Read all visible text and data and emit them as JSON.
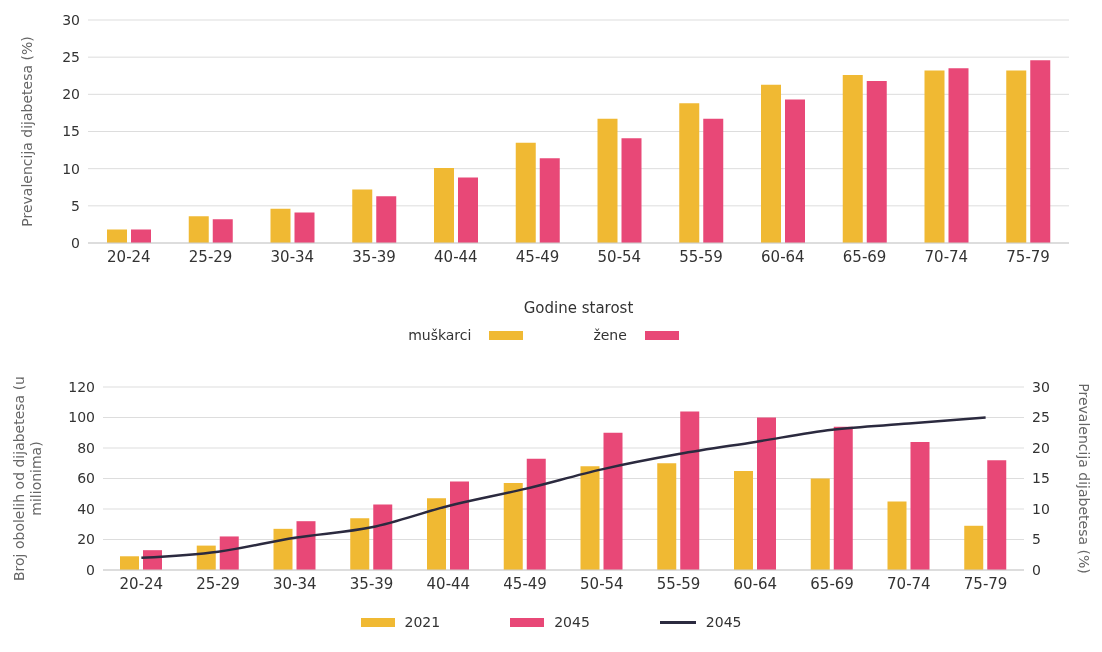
{
  "chart_data": [
    {
      "type": "bar",
      "ylabel": "Prevalencija dijabetesa (%)",
      "xlabel": "Godine starost",
      "categories": [
        "20-24",
        "25-29",
        "30-34",
        "35-39",
        "40-44",
        "45-49",
        "50-54",
        "55-59",
        "60-64",
        "65-69",
        "70-74",
        "75-79"
      ],
      "series": [
        {
          "name": "muškarci",
          "color": "#f0b933",
          "values": [
            1.8,
            3.6,
            4.6,
            7.2,
            10.1,
            13.5,
            16.7,
            18.8,
            21.3,
            22.6,
            23.2,
            23.2
          ]
        },
        {
          "name": "žene",
          "color": "#e84877",
          "values": [
            1.8,
            3.2,
            4.1,
            6.3,
            8.8,
            11.4,
            14.1,
            16.7,
            19.3,
            21.8,
            23.5,
            24.6
          ]
        }
      ],
      "ylim": [
        0,
        30
      ],
      "yticks": [
        0,
        5,
        10,
        15,
        20,
        25,
        30
      ],
      "grid": "y",
      "legend": "bottom"
    },
    {
      "type": "bar",
      "ylabel": "Broj obolelih od dijabetesa (u milionima)",
      "y2label": "Prevalencija dijabetesa (%)",
      "categories": [
        "20-24",
        "25-29",
        "30-34",
        "35-39",
        "40-44",
        "45-49",
        "50-54",
        "55-59",
        "60-64",
        "65-69",
        "70-74",
        "75-79"
      ],
      "series": [
        {
          "name": "2021",
          "color": "#f0b933",
          "values": [
            9,
            16,
            27,
            34,
            47,
            57,
            68,
            70,
            65,
            60,
            45,
            29
          ]
        },
        {
          "name": "2045",
          "color": "#e84877",
          "values": [
            13,
            22,
            32,
            43,
            58,
            73,
            90,
            104,
            100,
            94,
            84,
            72
          ]
        },
        {
          "name": "2045",
          "type": "line",
          "axis": "y2",
          "color": "#2b2a3f",
          "values": [
            2,
            3,
            5.3,
            7,
            10.5,
            13.3,
            16.5,
            19,
            21,
            23,
            24,
            25
          ]
        }
      ],
      "ylim": [
        0,
        120
      ],
      "yticks": [
        0,
        20,
        40,
        60,
        80,
        100,
        120
      ],
      "y2lim": [
        0,
        30
      ],
      "y2ticks": [
        0,
        5,
        10,
        15,
        20,
        25,
        30
      ],
      "grid": "y",
      "legend": "bottom",
      "marker": "none"
    }
  ]
}
